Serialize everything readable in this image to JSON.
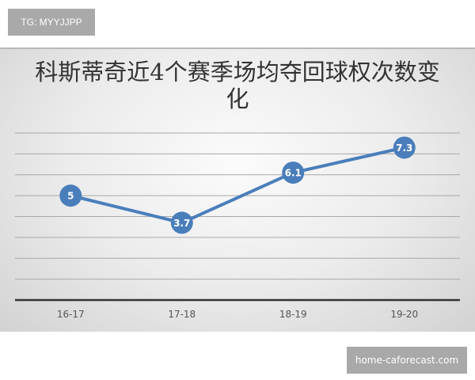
{
  "watermark_top": "TG: MYYJJPP",
  "watermark_bottom": "home-caforecast.com",
  "chart_data": {
    "type": "line",
    "title": "科斯蒂奇近4个赛季场均夺回球权次数变化",
    "categories": [
      "16-17",
      "17-18",
      "18-19",
      "19-20"
    ],
    "values": [
      5,
      3.7,
      6.1,
      7.3
    ],
    "data_labels": [
      "5",
      "3.7",
      "6.1",
      "7.3"
    ],
    "ylim": [
      0,
      8
    ],
    "grid": true,
    "y_tick_labels_shown": false,
    "legend": "none",
    "colors": {
      "series": "#4a7ebb",
      "axis": "#333333",
      "grid": "#a8a8a8"
    }
  }
}
